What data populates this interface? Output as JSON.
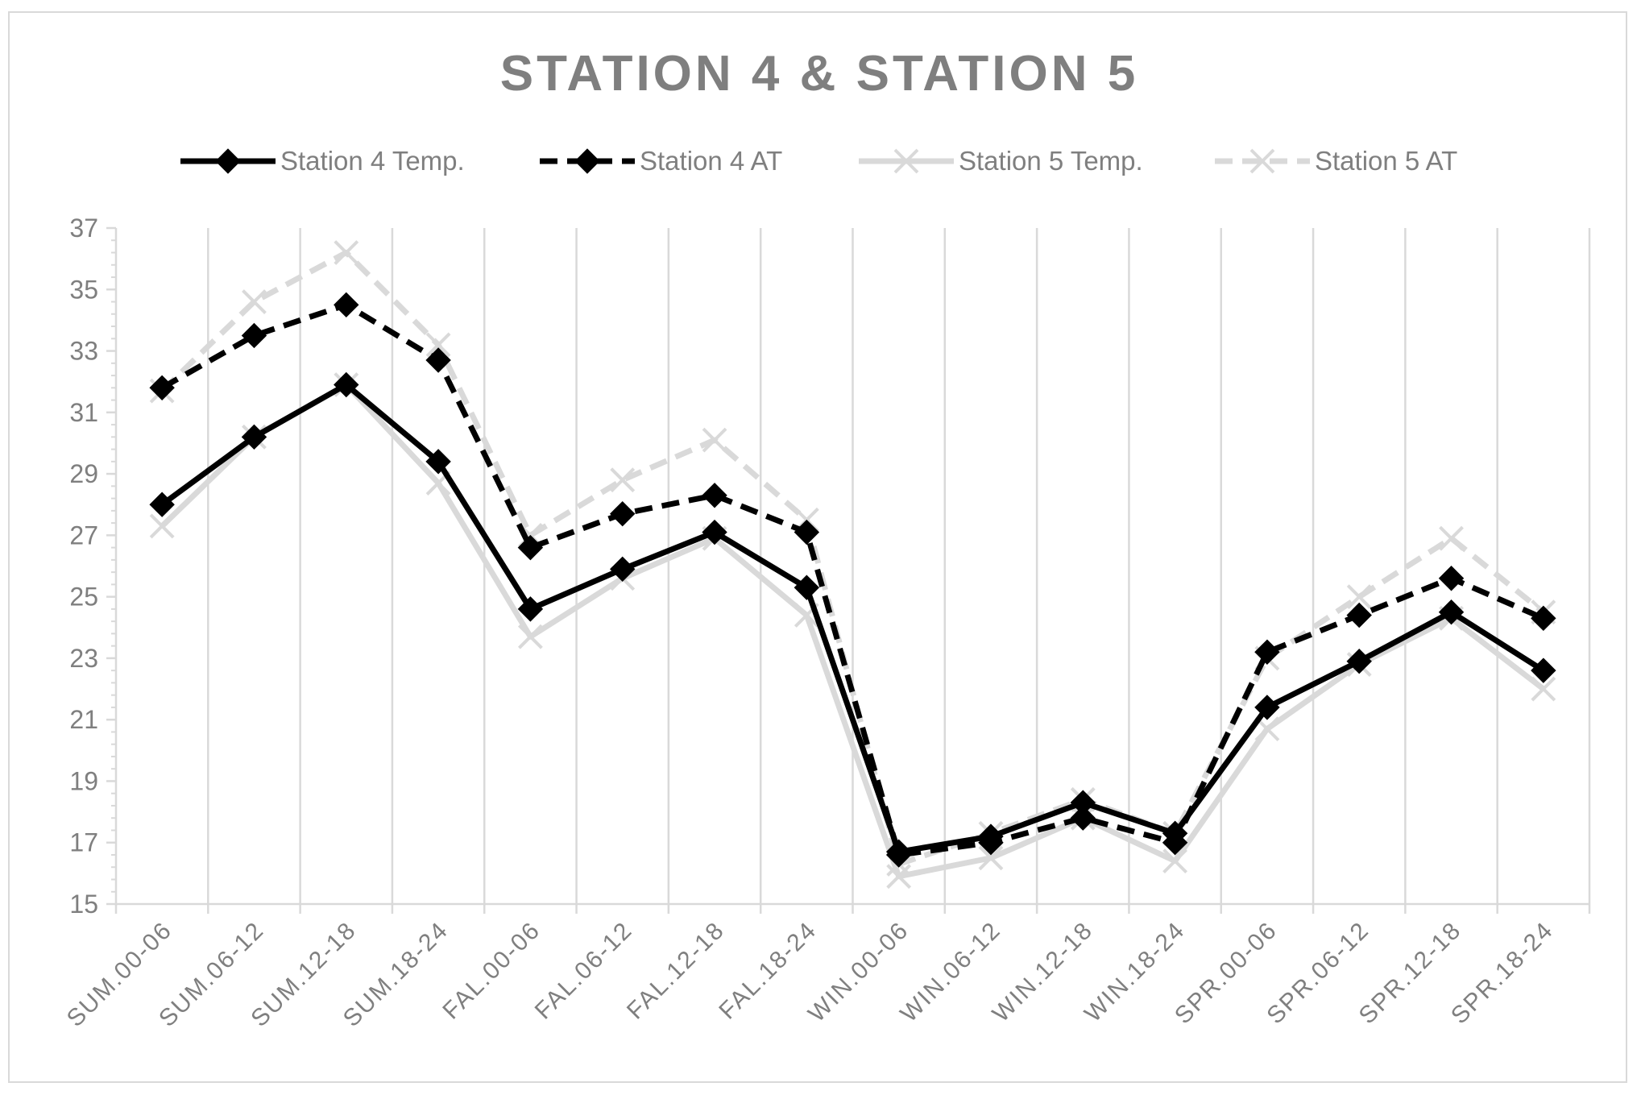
{
  "chart_data": {
    "type": "line",
    "title": "STATION 4 & STATION 5",
    "categories": [
      "SUM.00-06",
      "SUM.06-12",
      "SUM.12-18",
      "SUM.18-24",
      "FAL.00-06",
      "FAL.06-12",
      "FAL.12-18",
      "FAL.18-24",
      "WIN.00-06",
      "WIN.06-12",
      "WIN.12-18",
      "WIN.18-24",
      "SPR.00-06",
      "SPR.06-12",
      "SPR.12-18",
      "SPR.18-24"
    ],
    "ylim": [
      15,
      37
    ],
    "yticks": [
      "37",
      "35",
      "33",
      "31",
      "29",
      "27",
      "25",
      "23",
      "21",
      "19",
      "17",
      "15"
    ],
    "grid": "vertical",
    "legend": "top",
    "series": [
      {
        "name": "Station 4 Temp.",
        "color": "#000000",
        "dash": "solid",
        "marker": "diamond",
        "values": [
          28.0,
          30.2,
          31.9,
          29.4,
          24.6,
          25.9,
          27.1,
          25.3,
          16.7,
          17.2,
          18.3,
          17.3,
          21.4,
          22.9,
          24.5,
          22.6
        ]
      },
      {
        "name": "Station 4  AT",
        "color": "#000000",
        "dash": "dashed",
        "marker": "diamond",
        "values": [
          31.8,
          33.5,
          34.5,
          32.7,
          26.6,
          27.7,
          28.3,
          27.1,
          16.6,
          17.0,
          17.8,
          17.0,
          23.2,
          24.4,
          25.6,
          24.3
        ]
      },
      {
        "name": "Station 5 Temp.",
        "color": "#d9d9d9",
        "dash": "solid",
        "marker": "x",
        "values": [
          27.3,
          30.2,
          31.9,
          28.7,
          23.7,
          25.6,
          26.9,
          24.4,
          15.9,
          16.5,
          17.8,
          16.4,
          20.7,
          22.8,
          24.3,
          22.0
        ]
      },
      {
        "name": "Station 5 AT",
        "color": "#d9d9d9",
        "dash": "dashed",
        "marker": "x",
        "values": [
          31.7,
          34.6,
          36.2,
          33.2,
          27.0,
          28.8,
          30.1,
          27.5,
          16.3,
          17.3,
          18.4,
          17.3,
          23.0,
          25.0,
          26.9,
          24.5
        ]
      }
    ]
  }
}
